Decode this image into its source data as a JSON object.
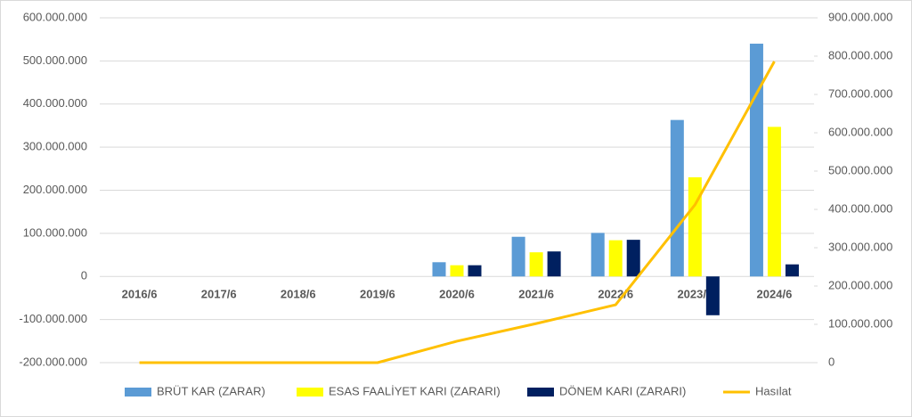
{
  "chart_data": {
    "type": "bar-line",
    "categories": [
      "2016/6",
      "2017/6",
      "2018/6",
      "2019/6",
      "2020/6",
      "2021/6",
      "2022/6",
      "2023/6",
      "2024/6"
    ],
    "series": [
      {
        "name": "BRÜT KAR (ZARAR)",
        "type": "bar",
        "color": "#5b9bd5",
        "values": [
          null,
          null,
          null,
          null,
          33000000,
          92000000,
          101000000,
          363000000,
          540000000
        ]
      },
      {
        "name": "ESAS FAALİYET KARI (ZARARI)",
        "type": "bar",
        "color": "#ffff00",
        "values": [
          null,
          null,
          null,
          null,
          26000000,
          56000000,
          84000000,
          230000000,
          347000000
        ]
      },
      {
        "name": "DÖNEM KARI (ZARARI)",
        "type": "bar",
        "color": "#002060",
        "values": [
          null,
          null,
          null,
          null,
          26000000,
          58000000,
          85000000,
          -90000000,
          28000000
        ]
      },
      {
        "name": "Hasılat",
        "type": "line",
        "axis": "y2",
        "color": "#ffc000",
        "values": [
          0,
          0,
          0,
          0,
          56000000,
          102000000,
          151000000,
          412000000,
          786000000
        ]
      }
    ],
    "ylim": [
      -200000000,
      600000000
    ],
    "yticks": [
      {
        "value": -200000000,
        "label": "-200.000.000"
      },
      {
        "value": -100000000,
        "label": "-100.000.000"
      },
      0,
      {
        "value": 100000000,
        "label": "100.000.000"
      },
      {
        "value": 200000000,
        "label": "200.000.000"
      },
      {
        "value": 300000000,
        "label": "300.000.000"
      },
      {
        "value": 400000000,
        "label": "400.000.000"
      },
      {
        "value": 500000000,
        "label": "500.000.000"
      },
      {
        "value": 600000000,
        "label": "600.000.000"
      }
    ],
    "y2lim": [
      0,
      900000000
    ],
    "y2ticks": [
      0,
      {
        "value": 100000000,
        "label": "100.000.000"
      },
      {
        "value": 200000000,
        "label": "200.000.000"
      },
      {
        "value": 300000000,
        "label": "300.000.000"
      },
      {
        "value": 400000000,
        "label": "400.000.000"
      },
      {
        "value": 500000000,
        "label": "500.000.000"
      },
      {
        "value": 600000000,
        "label": "600.000.000"
      },
      {
        "value": 700000000,
        "label": "700.000.000"
      },
      {
        "value": 800000000,
        "label": "800.000.000"
      },
      {
        "value": 900000000,
        "label": "900.000.000"
      }
    ],
    "grid": true,
    "legend": "bottom"
  }
}
